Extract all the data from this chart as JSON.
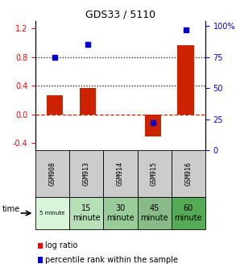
{
  "title": "GDS33 / 5110",
  "samples": [
    "GSM908",
    "GSM913",
    "GSM914",
    "GSM915",
    "GSM916"
  ],
  "log_ratios": [
    0.27,
    0.37,
    0.0,
    -0.3,
    0.97
  ],
  "percentile_ranks": [
    75,
    85,
    null,
    22,
    97
  ],
  "ylim_left": [
    -0.5,
    1.3
  ],
  "ylim_right": [
    0,
    104
  ],
  "yticks_left": [
    -0.4,
    0.0,
    0.4,
    0.8,
    1.2
  ],
  "yticks_right": [
    0,
    25,
    50,
    75,
    100
  ],
  "hlines_dotted": [
    0.4,
    0.8
  ],
  "bar_color": "#cc2200",
  "dot_color": "#0000cc",
  "zero_line_color": "#cc2200",
  "bar_width": 0.5,
  "sample_bg_color": "#cccccc",
  "time_labels": [
    "5 minute",
    "15\nminute",
    "30\nminute",
    "45\nminute",
    "60\nminute"
  ],
  "time_colors": [
    "#d9f5d9",
    "#b8e0b8",
    "#99cc99",
    "#88bb88",
    "#55aa55"
  ],
  "legend_bar_label": "log ratio",
  "legend_dot_label": "percentile rank within the sample"
}
